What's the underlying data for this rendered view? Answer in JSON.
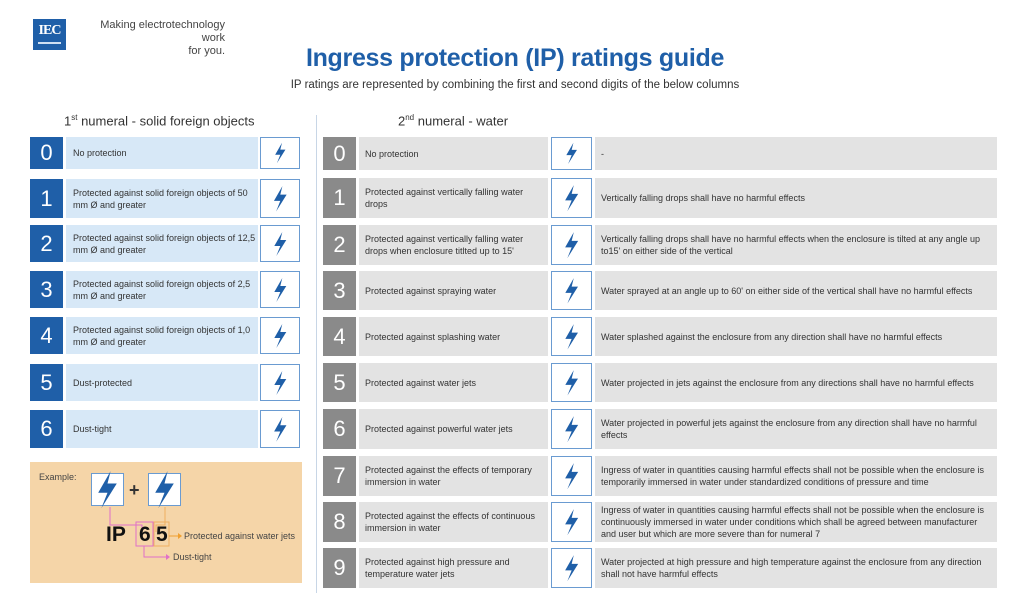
{
  "header": {
    "logo_text": "IEC",
    "tagline_line1": "Making  electrotechnology work",
    "tagline_line2": "for you.",
    "title": "Ingress protection (IP) ratings guide",
    "subtitle": "IP ratings are represented by combining the first and second digits of the below columns"
  },
  "left": {
    "heading_num": "1",
    "heading_sup": "st",
    "heading_text": " numeral - solid foreign objects",
    "rows": [
      {
        "num": "0",
        "text": "No protection",
        "icon": "lightning-icon"
      },
      {
        "num": "1",
        "text": "Protected against solid foreign objects of 50 mm Ø and greater",
        "icon": "hand-icon"
      },
      {
        "num": "2",
        "text": "Protected against solid foreign objects of 12,5 mm Ø and greater",
        "icon": "finger-icon"
      },
      {
        "num": "3",
        "text": "Protected against solid foreign objects of 2,5 mm Ø and greater",
        "icon": "tool-icon"
      },
      {
        "num": "4",
        "text": "Protected against solid foreign objects of 1,0 mm Ø and greater",
        "icon": "wire-icon"
      },
      {
        "num": "5",
        "text": "Dust-protected",
        "icon": "dust-icon"
      },
      {
        "num": "6",
        "text": "Dust-tight",
        "icon": "dust-tight-icon"
      }
    ]
  },
  "right": {
    "heading_num": "2",
    "heading_sup": "nd",
    "heading_text": " numeral - water",
    "rows": [
      {
        "num": "0",
        "text": "No protection",
        "desc": "-",
        "icon": "lightning-icon"
      },
      {
        "num": "1",
        "text": "Protected against vertically falling water drops",
        "desc": "Vertically falling drops shall have no harmful effects",
        "icon": "drops-icon"
      },
      {
        "num": "2",
        "text": "Protected against vertically falling water drops when enclosure titlted up to 15'",
        "desc": "Vertically falling drops shall have no harmful effects when the enclosure is tilted at any angle up to15' on either side of the vertical",
        "icon": "tilted-drops-icon"
      },
      {
        "num": "3",
        "text": "Protected against spraying water",
        "desc": "Water sprayed at an angle up to 60' on either side of the vertical shall have no harmful effects",
        "icon": "spray-icon"
      },
      {
        "num": "4",
        "text": "Protected against splashing water",
        "desc": "Water splashed against the enclosure from any direction shall have no harmful effects",
        "icon": "splash-icon"
      },
      {
        "num": "5",
        "text": "Protected against water jets",
        "desc": "Water projected in jets against the enclosure from any directions shall have no harmful effects",
        "icon": "water-jet-icon"
      },
      {
        "num": "6",
        "text": "Protected against powerful water jets",
        "desc": "Water projected in powerful jets against the enclosure from any direction shall have no harmful effects",
        "icon": "powerful-jet-icon"
      },
      {
        "num": "7",
        "text": "Protected against the effects of temporary immersion in water",
        "desc": "Ingress of water in quantities causing harmful effects shall not be possible when the enclosure is temporarily immersed in water under standardized conditions of pressure and time",
        "icon": "immersion-icon"
      },
      {
        "num": "8",
        "text": "Protected against the effects of continuous immersion in water",
        "desc": "Ingress of water in quantities causing harmful effects shall not be possible when the enclosure is continuously immersed in water under conditions which shall be agreed between manufacturer and user but which are more severe than for numeral 7",
        "icon": "continuous-immersion-icon"
      },
      {
        "num": "9",
        "text": "Protected against high pressure and temperature water jets",
        "desc": "Water projected at high pressure and high temperature against the enclosure from any direction shall not have harmful effects",
        "icon": "high-pressure-jet-icon"
      }
    ]
  },
  "example": {
    "label": "Example:",
    "plus": "+",
    "ip": "IP",
    "digit1": "6",
    "digit2": "5",
    "note2": "Protected against water jets",
    "note1": "Dust-tight"
  },
  "colors": {
    "blue": "#1f5fa8",
    "light_blue": "#d7e8f7",
    "gray": "#8a8a8a",
    "light_gray": "#e3e3e3",
    "example_bg": "#f5d5a8",
    "pink": "#e070c8",
    "orange": "#f0a030"
  }
}
